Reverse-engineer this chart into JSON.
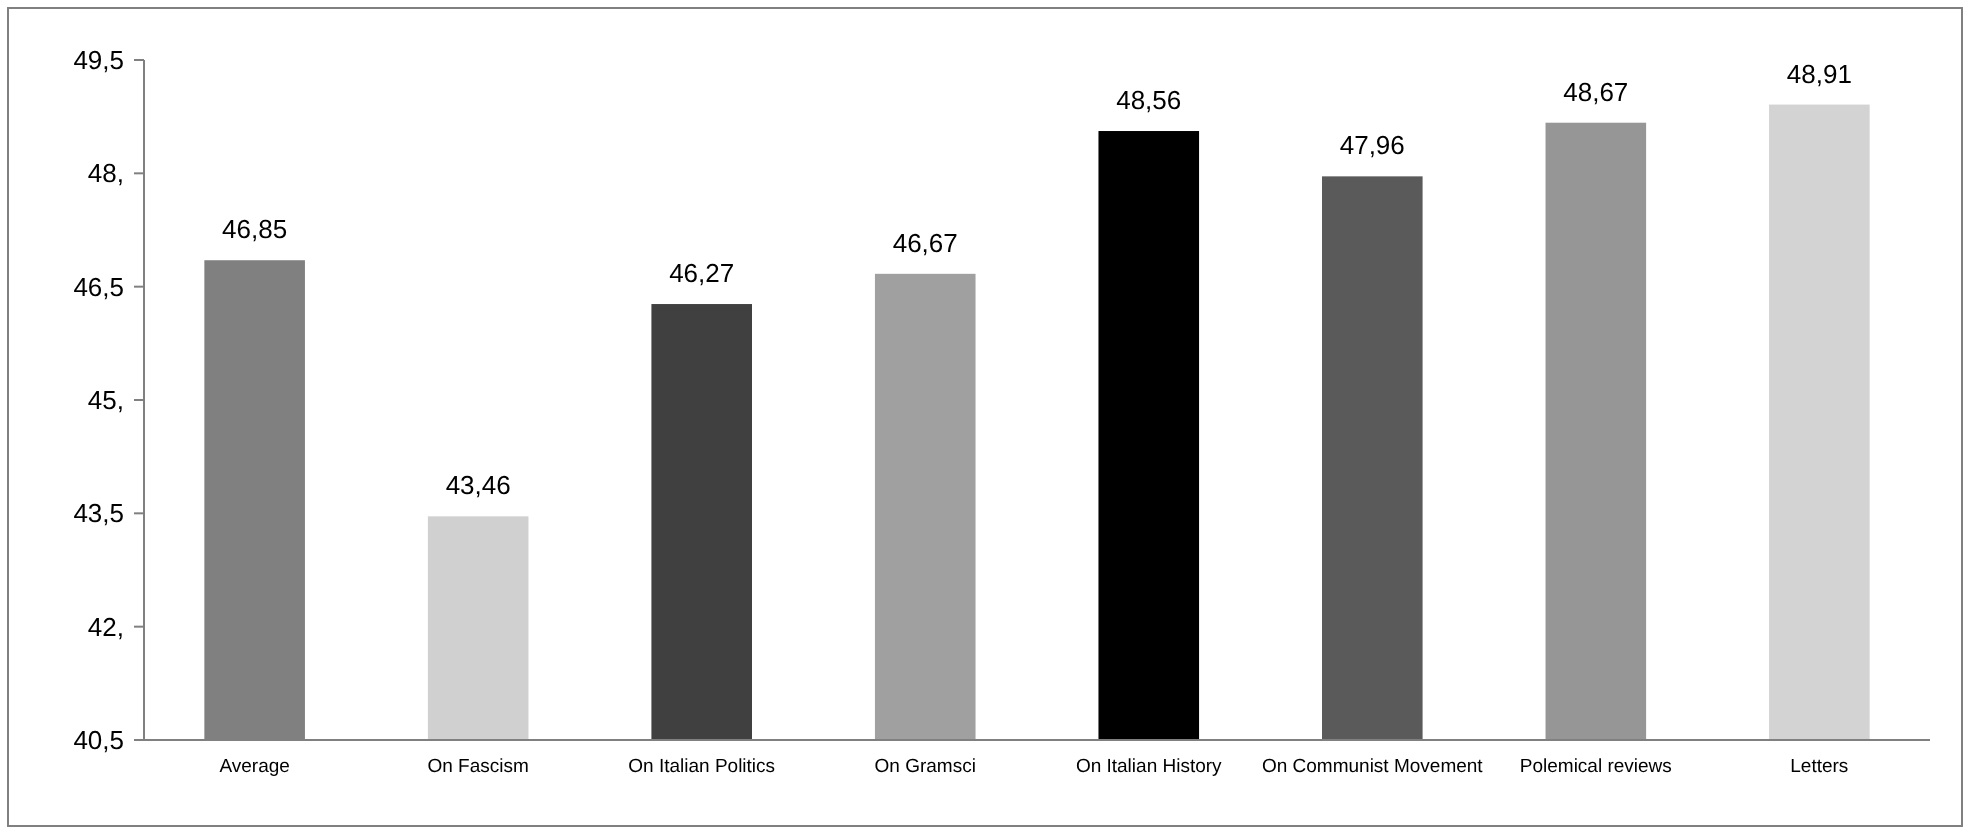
{
  "chart_data": {
    "type": "bar",
    "categories": [
      "Average",
      "On Fascism",
      "On Italian Politics",
      "On Gramsci",
      "On Italian History",
      "On Communist Movement",
      "Polemical reviews",
      "Letters"
    ],
    "values": [
      46.85,
      43.46,
      46.27,
      46.67,
      48.56,
      47.96,
      48.67,
      48.91
    ],
    "colors": [
      "#808080",
      "#d0d0d0",
      "#404040",
      "#a0a0a0",
      "#000000",
      "#5a5a5a",
      "#969696",
      "#d3d3d3"
    ],
    "value_labels": [
      "46,85",
      "43,46",
      "46,27",
      "46,67",
      "48,56",
      "47,96",
      "48,67",
      "48,91"
    ],
    "ylim": [
      40.5,
      49.5
    ],
    "yticks": [
      {
        "value": 40.5,
        "label": "40,5"
      },
      {
        "value": 42,
        "label": "42,"
      },
      {
        "value": 43.5,
        "label": "43,5"
      },
      {
        "value": 45,
        "label": "45,"
      },
      {
        "value": 46.5,
        "label": "46,5"
      },
      {
        "value": 48,
        "label": "48,"
      },
      {
        "value": 49.5,
        "label": "49,5"
      }
    ],
    "grid": false
  }
}
